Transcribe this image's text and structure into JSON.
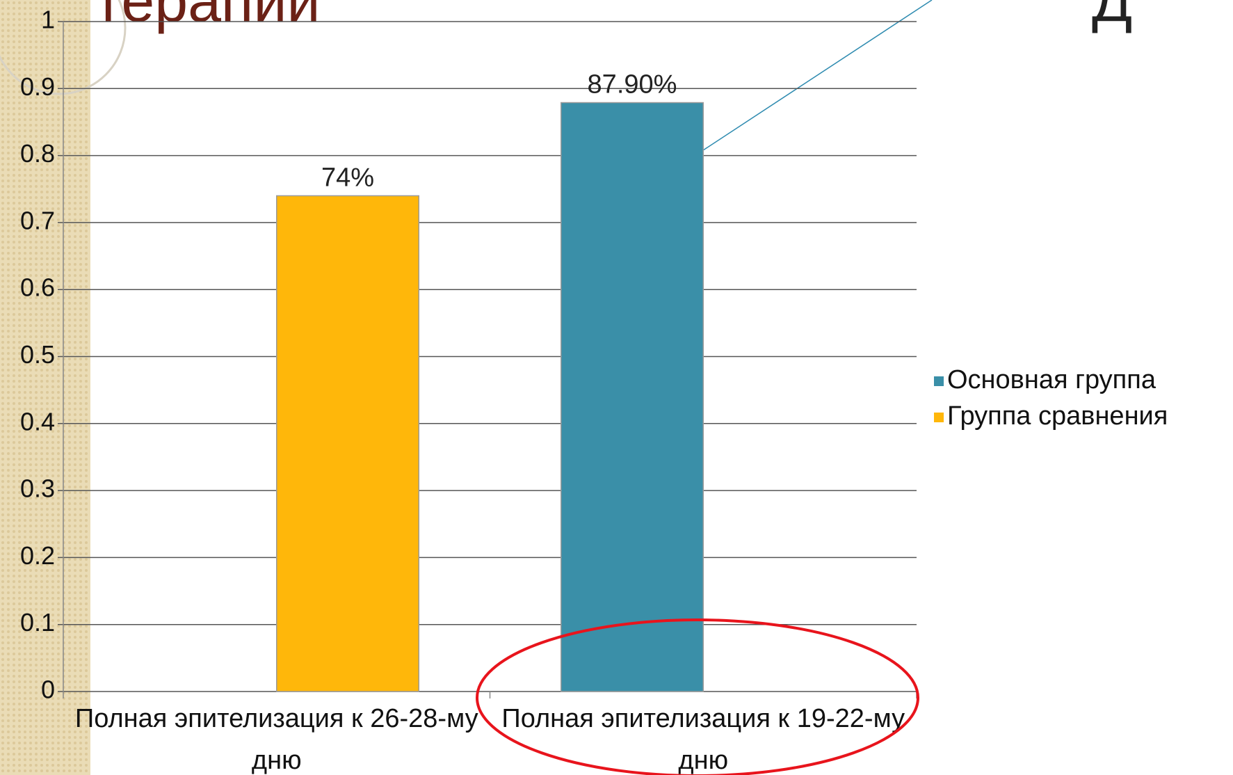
{
  "chart_data": {
    "type": "bar",
    "title": "терапии",
    "annotations": [
      "Д"
    ],
    "categories": [
      "Полная эпителизация к 26-28-му дню",
      "Полная эпителизация к 19-22-му дню"
    ],
    "series": [
      {
        "name": "Основная группа",
        "color": "#3a8fa8",
        "values": [
          null,
          0.879
        ],
        "value_labels": [
          null,
          "87.90%"
        ]
      },
      {
        "name": "Группа сравнения",
        "color": "#ffb70a",
        "values": [
          0.74,
          null
        ],
        "value_labels": [
          "74%",
          null
        ]
      }
    ],
    "ylim": [
      0,
      1
    ],
    "yticks": [
      0,
      0.1,
      0.2,
      0.3,
      0.4,
      0.5,
      0.6,
      0.7,
      0.8,
      0.9,
      1
    ],
    "grid": true,
    "legend": "right"
  }
}
